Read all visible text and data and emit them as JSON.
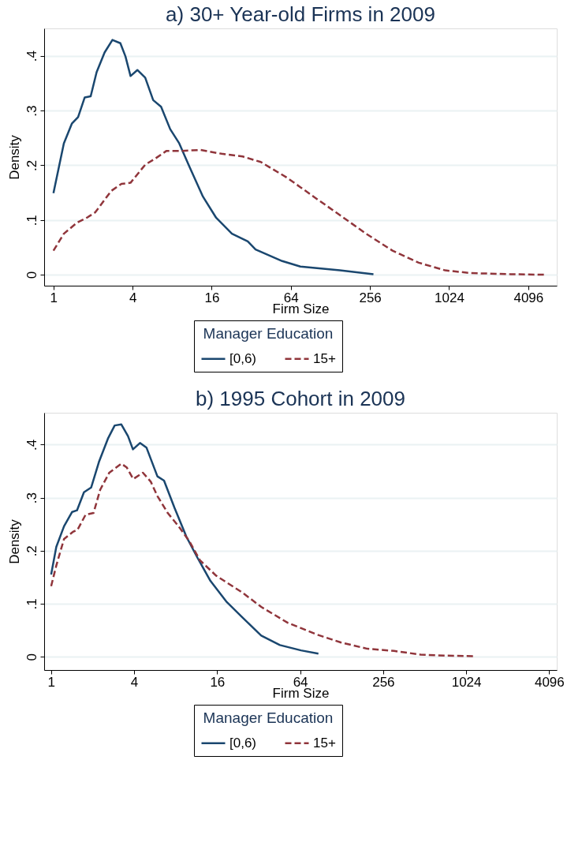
{
  "chart_data": [
    {
      "type": "line",
      "title": "a) 30+ Year-old Firms in 2009",
      "xlabel": "Firm Size",
      "ylabel": "Density",
      "legend_title": "Manager Education",
      "legend": "bottom",
      "grid": "y",
      "log": "x",
      "marker": "none",
      "xlim": [
        0.85,
        6750
      ],
      "xticks": [
        1,
        4,
        16,
        64,
        256,
        1024,
        4096
      ],
      "ylim": [
        -0.02,
        0.45
      ],
      "yticks": [
        0,
        {
          "value": 0.1,
          "label": ".1"
        },
        {
          "value": 0.2,
          "label": ".2"
        },
        {
          "value": 0.3,
          "label": ".3"
        },
        {
          "value": 0.4,
          "label": ".4"
        }
      ],
      "series": [
        {
          "name": "[0,6)",
          "color": "#1a476f",
          "line_style": "solid",
          "x": [
            1,
            1.2,
            1.38,
            1.54,
            1.73,
            1.92,
            2.13,
            2.45,
            2.81,
            3.23,
            3.53,
            3.86,
            4.35,
            4.99,
            5.74,
            6.59,
            7.73,
            9.06,
            10.9,
            13.7,
            17.3,
            22.8,
            30.1,
            34.5,
            55,
            75.6,
            151,
            272
          ],
          "values": [
            0.149,
            0.24,
            0.276,
            0.288,
            0.324,
            0.326,
            0.37,
            0.406,
            0.429,
            0.423,
            0.399,
            0.363,
            0.374,
            0.36,
            0.319,
            0.307,
            0.266,
            0.24,
            0.196,
            0.143,
            0.104,
            0.075,
            0.061,
            0.046,
            0.025,
            0.015,
            0.008,
            0.001
          ]
        },
        {
          "name": "15+",
          "color": "#90353b",
          "line_style": "dashed",
          "x": [
            1,
            1.2,
            1.51,
            1.82,
            2.08,
            2.75,
            3.29,
            3.86,
            4.99,
            6.02,
            7.21,
            9.06,
            13.1,
            19,
            27.5,
            37.8,
            60.1,
            75.6,
            95,
            151,
            239,
            380,
            601,
            955,
            1510,
            3020,
            5480
          ],
          "values": [
            0.044,
            0.075,
            0.095,
            0.105,
            0.114,
            0.153,
            0.166,
            0.168,
            0.201,
            0.213,
            0.226,
            0.226,
            0.228,
            0.221,
            0.216,
            0.206,
            0.177,
            0.16,
            0.143,
            0.109,
            0.075,
            0.044,
            0.022,
            0.008,
            0.003,
            0.001,
            0
          ]
        }
      ]
    },
    {
      "type": "line",
      "title": "b) 1995 Cohort in 2009",
      "xlabel": "Firm Size",
      "ylabel": "Density",
      "legend_title": "Manager Education",
      "legend": "bottom",
      "grid": "y",
      "log": "x",
      "marker": "none",
      "xlim": [
        0.89,
        4650
      ],
      "xticks": [
        1,
        4,
        16,
        64,
        256,
        1024,
        4096
      ],
      "ylim": [
        -0.025,
        0.46
      ],
      "yticks": [
        0,
        {
          "value": 0.1,
          "label": ".1"
        },
        {
          "value": 0.2,
          "label": ".2"
        },
        {
          "value": 0.3,
          "label": ".3"
        },
        {
          "value": 0.4,
          "label": ".4"
        }
      ],
      "series": [
        {
          "name": "[0,6)",
          "color": "#1a476f",
          "line_style": "solid",
          "x": [
            1,
            1.09,
            1.24,
            1.42,
            1.54,
            1.73,
            1.95,
            2.22,
            2.58,
            2.89,
            3.23,
            3.61,
            3.92,
            4.41,
            4.92,
            5.9,
            6.59,
            7.84,
            9.58,
            11.5,
            14.3,
            18.8,
            24.4,
            33.4,
            45.6,
            64.9,
            86.8
          ],
          "values": [
            0.155,
            0.207,
            0.246,
            0.273,
            0.276,
            0.31,
            0.319,
            0.367,
            0.411,
            0.436,
            0.438,
            0.416,
            0.391,
            0.403,
            0.394,
            0.34,
            0.332,
            0.281,
            0.226,
            0.187,
            0.143,
            0.103,
            0.074,
            0.04,
            0.022,
            0.012,
            0.006
          ]
        },
        {
          "name": "15+",
          "color": "#90353b",
          "line_style": "dashed",
          "x": [
            1,
            1.09,
            1.24,
            1.45,
            1.55,
            1.78,
            2.03,
            2.27,
            2.64,
            3.23,
            3.53,
            3.94,
            4.63,
            5.28,
            5.9,
            7.01,
            8.4,
            10.1,
            12,
            15.7,
            24.4,
            33.4,
            52,
            84.4,
            126,
            197,
            307,
            478,
            744,
            1190
          ],
          "values": [
            0.133,
            0.172,
            0.222,
            0.236,
            0.239,
            0.268,
            0.271,
            0.315,
            0.347,
            0.364,
            0.357,
            0.335,
            0.347,
            0.33,
            0.303,
            0.271,
            0.246,
            0.217,
            0.182,
            0.153,
            0.121,
            0.094,
            0.064,
            0.042,
            0.027,
            0.015,
            0.011,
            0.004,
            0.002,
            0.001
          ]
        }
      ]
    }
  ]
}
